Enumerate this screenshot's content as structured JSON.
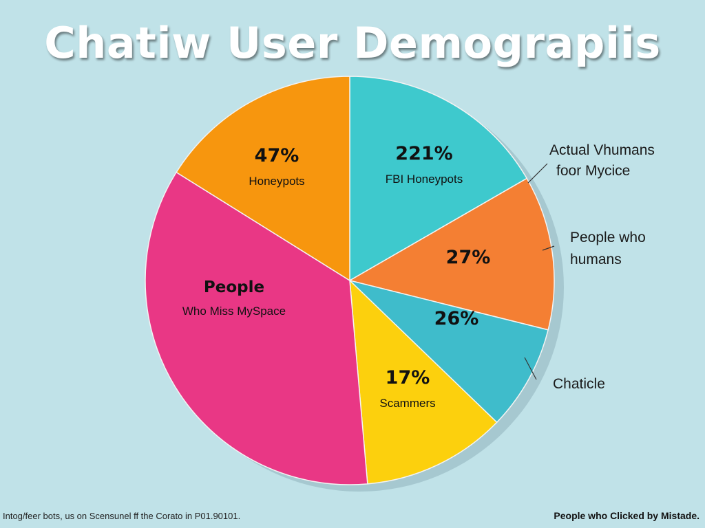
{
  "chart_data": {
    "type": "pie",
    "title": "Chatiw User Demograpiis",
    "slices": [
      {
        "value": "221%",
        "label": "FBI Honeypots",
        "color": "#3ec9cd"
      },
      {
        "value": "27%",
        "label": "",
        "color": "#f47f33"
      },
      {
        "value": "26%",
        "label": "",
        "color": "#3fbccb"
      },
      {
        "value": "17%",
        "label": "Scammers",
        "color": "#fcd00d"
      },
      {
        "value": "People",
        "label": "Who Miss MySpace",
        "color": "#e93785"
      },
      {
        "value": "47%",
        "label": "Honeypots",
        "color": "#f7960e"
      }
    ],
    "callouts": [
      {
        "lines": [
          "Actual Vhumans",
          "foor Mycice"
        ]
      },
      {
        "lines": [
          "People who",
          "humans"
        ]
      },
      {
        "lines": [
          "Chaticle"
        ]
      }
    ]
  },
  "footnote": "Intog/feer bots, us on Scensunel ff the Corato in P01.90101.",
  "footer_right": "People who Clicked by Mistade."
}
